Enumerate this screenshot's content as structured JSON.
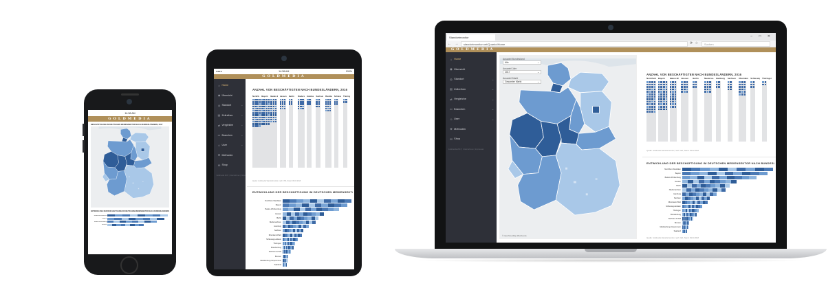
{
  "brand": "GOLDMEDIA",
  "colors": {
    "sidebar": "#2e3038",
    "accent": "#b0905a",
    "dark_blue": "#2f5d98",
    "mid_blue": "#6d9bd0",
    "light_blue": "#a9c8e8",
    "track": "#e2e3e5"
  },
  "menu": [
    {
      "label": "Home",
      "icon": "home-icon",
      "glyph": "⌂",
      "active": true
    },
    {
      "label": "Übersicht",
      "icon": "overview-icon",
      "glyph": "◉"
    },
    {
      "label": "Standort",
      "icon": "location-icon",
      "glyph": "◎",
      "chevron": true
    },
    {
      "label": "Zeitreihen",
      "icon": "time-series-icon",
      "glyph": "▤",
      "chevron": true
    },
    {
      "label": "Vergleiche",
      "icon": "compare-icon",
      "glyph": "⇄",
      "chevron": true
    },
    {
      "label": "Branchen",
      "icon": "industry-icon",
      "glyph": "▭",
      "chevron": true
    },
    {
      "label": "User",
      "icon": "user-icon",
      "glyph": "☺",
      "chevron": true
    },
    {
      "label": "Methoden",
      "icon": "methods-icon",
      "glyph": "⚙"
    },
    {
      "label": "Shop",
      "icon": "shop-icon",
      "glyph": "⛁"
    }
  ],
  "sidebar_footer": "Goldmedia 2017 | Unternehmen | Impressum",
  "phone": {
    "status_time": "14:38 AM",
    "map_title": "BESCHÄFTIGUNG IM DEUTSCHEN MEDIENSEKTOR NACH BUNDESLÄNDERN, 2017",
    "bars_title": "ENTWICKLUNG DER BESCHÄFTIGUNG IM DEUTSCHEN MEDIENSEKTOR NACH BUNDESLÄNDERN"
  },
  "tablet": {
    "status_time": "14:38 AM",
    "status_battery": "100%"
  },
  "laptop": {
    "tab_title": "Standortmonitor",
    "url": "standortmonitor.net/QuarkoIHome",
    "search_placeholder": "Suchen",
    "map_attribution": "© OpenStreetMap-Mitwirkende",
    "filters": [
      {
        "label": "Auswahl Bundesland",
        "value": "Alle"
      },
      {
        "label": "Auswahl Jahr",
        "value": "2017"
      },
      {
        "label": "Auswahl Markt",
        "value": "Gesamter Markt"
      }
    ]
  },
  "waffle_chart": {
    "title": "ANZAHL VON BESCHÄFTIGTEN NACH BUNDESLÄNDERN, 2016",
    "source": "Quelle: Goldmedia Standortmonitor, nach: IHK, Stand: 09.03.2018",
    "columns": [
      {
        "label": "Nordrhein...",
        "rows": 13,
        "cols": 4
      },
      {
        "label": "Bayern",
        "rows": 12,
        "cols": 4
      },
      {
        "label": "Baden-W...",
        "rows": 11,
        "cols": 3
      },
      {
        "label": "Hessen",
        "rows": 5,
        "cols": 3
      },
      {
        "label": "Berlin",
        "rows": 3,
        "cols": 2
      },
      {
        "label": "Niedersa...",
        "rows": 5,
        "cols": 3
      },
      {
        "label": "Hamburg",
        "rows": 3,
        "cols": 2
      },
      {
        "label": "Sachsen",
        "rows": 4,
        "cols": 2
      },
      {
        "label": "Rheinland...",
        "rows": 6,
        "cols": 3
      },
      {
        "label": "Schleswig...",
        "rows": 3,
        "cols": 2
      },
      {
        "label": "Thüringen",
        "rows": 2,
        "cols": 2
      },
      {
        "label": "Brandenb...",
        "rows": 3,
        "cols": 2
      }
    ]
  },
  "chart_data": {
    "type": "bar",
    "title": "ENTWICKLUNG DER BESCHÄFTIGUNG IM DEUTSCHEN MEDIENSEKTOR NACH BUNDESLÄNDERN",
    "source": "Quelle: Goldmedia Standortmonitor, nach: IHK, Stand: 09.03.2018",
    "categories": [
      "Nordrhein-Westfalen",
      "Bayern",
      "Baden-Württemberg",
      "Hessen",
      "Berlin",
      "Niedersachsen",
      "Hamburg",
      "Sachsen",
      "Rheinland-Pfalz",
      "Schleswig-Holstein",
      "Thüringen",
      "Brandenburg",
      "Sachsen-Anhalt",
      "Bremen",
      "Mecklenburg-Vorpommern",
      "Saarland"
    ],
    "values": [
      100,
      94,
      82,
      60,
      52,
      48,
      38,
      30,
      28,
      22,
      18,
      16,
      12,
      8,
      7,
      5
    ]
  }
}
